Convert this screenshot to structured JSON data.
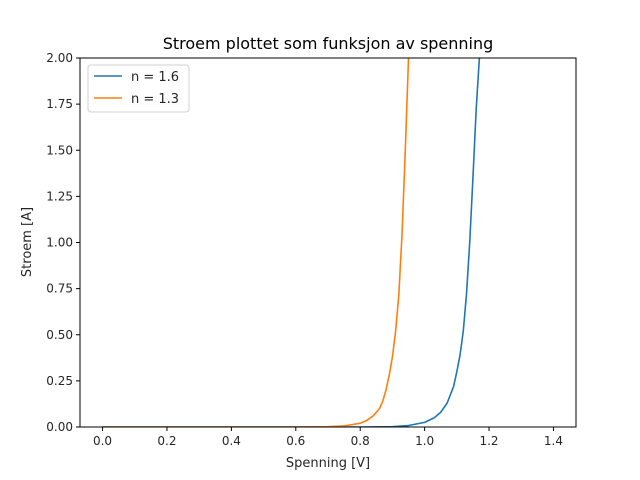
{
  "chart_data": {
    "type": "line",
    "title": "Stroem plottet som funksjon av spenning",
    "xlabel": "Spenning [V]",
    "ylabel": "Stroem [A]",
    "xlim": [
      -0.07,
      1.47
    ],
    "ylim": [
      0,
      2.0
    ],
    "xticks": [
      "0.0",
      "0.2",
      "0.4",
      "0.6",
      "0.8",
      "1.0",
      "1.2",
      "1.4"
    ],
    "xtick_values": [
      0.0,
      0.2,
      0.4,
      0.6,
      0.8,
      1.0,
      1.2,
      1.4
    ],
    "yticks": [
      "0.00",
      "0.25",
      "0.50",
      "0.75",
      "1.00",
      "1.25",
      "1.50",
      "1.75",
      "2.00"
    ],
    "ytick_values": [
      0.0,
      0.25,
      0.5,
      0.75,
      1.0,
      1.25,
      1.5,
      1.75,
      2.0
    ],
    "grid": false,
    "legend_position": "top-left",
    "series": [
      {
        "name": "n = 1.6",
        "color": "#1f77b4",
        "x": [
          0.0,
          0.2,
          0.4,
          0.6,
          0.8,
          0.9,
          0.95,
          1.0,
          1.03,
          1.05,
          1.07,
          1.09,
          1.1,
          1.11,
          1.12,
          1.13,
          1.14,
          1.15,
          1.16,
          1.17
        ],
        "y": [
          0.0,
          0.0,
          0.0,
          0.0,
          0.0,
          0.002,
          0.008,
          0.025,
          0.05,
          0.08,
          0.13,
          0.22,
          0.3,
          0.39,
          0.52,
          0.72,
          1.0,
          1.35,
          1.72,
          2.0
        ]
      },
      {
        "name": "n = 1.3",
        "color": "#ff7f0e",
        "x": [
          0.0,
          0.2,
          0.4,
          0.6,
          0.7,
          0.75,
          0.8,
          0.82,
          0.84,
          0.86,
          0.87,
          0.88,
          0.89,
          0.9,
          0.91,
          0.92,
          0.93,
          0.94,
          0.95
        ],
        "y": [
          0.0,
          0.0,
          0.0,
          0.0,
          0.002,
          0.006,
          0.02,
          0.035,
          0.06,
          0.1,
          0.14,
          0.2,
          0.28,
          0.38,
          0.52,
          0.72,
          1.05,
          1.5,
          2.0
        ]
      }
    ]
  }
}
